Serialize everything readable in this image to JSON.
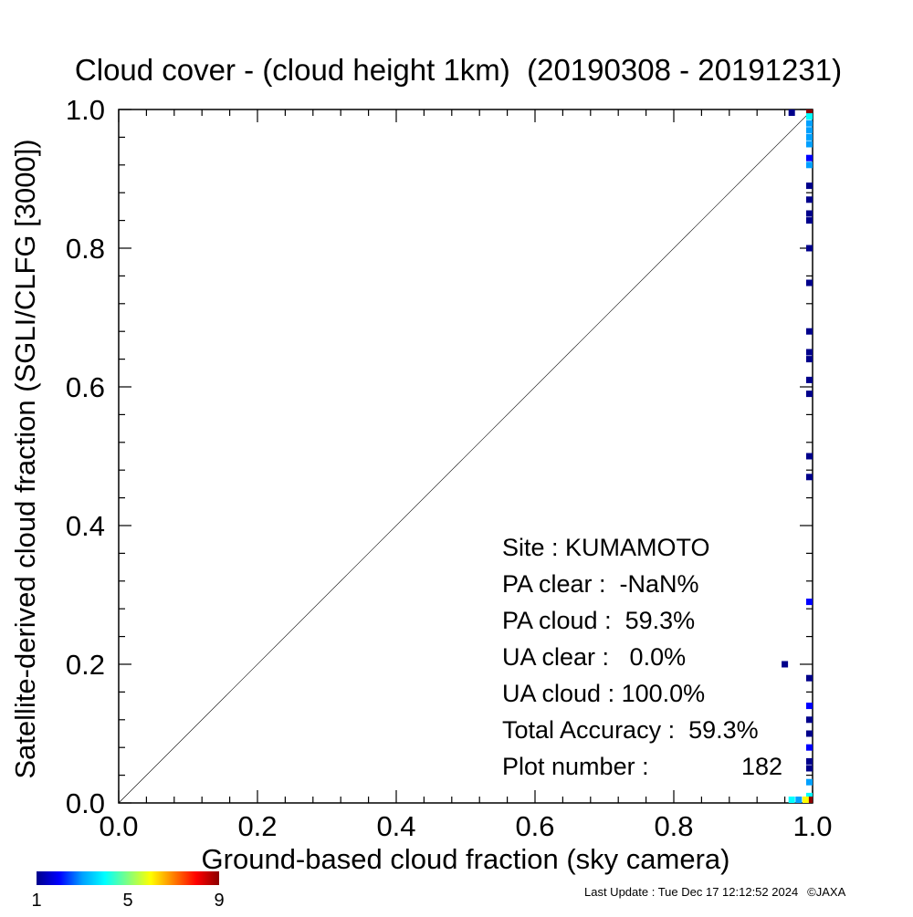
{
  "chart_data": {
    "type": "heatmap",
    "title": "Cloud cover - (cloud height 1km)  (20190308 - 20191231)",
    "xlabel": "Ground-based cloud fraction (sky camera)",
    "ylabel": "Satellite-derived cloud fraction (SGLI/CLFG [3000])",
    "xlim": [
      0,
      1
    ],
    "ylim": [
      0,
      1
    ],
    "x_ticks": [
      "0.0",
      "0.2",
      "0.4",
      "0.6",
      "0.8",
      "1.0"
    ],
    "y_ticks": [
      "0.0",
      "0.2",
      "0.4",
      "0.6",
      "0.8",
      "1.0"
    ],
    "reference_line": "1:1 diagonal",
    "colorbar": {
      "min": 1,
      "max": 9,
      "tick_labels": [
        "1",
        "5",
        "9"
      ],
      "colors": [
        "#00008b",
        "#0000ff",
        "#00a0ff",
        "#00ffff",
        "#80ff80",
        "#ffff00",
        "#ff8000",
        "#ff0000",
        "#8b0000"
      ]
    },
    "points": [
      {
        "x": 1.0,
        "y": 1.0,
        "count": 9
      },
      {
        "x": 1.0,
        "y": 0.99,
        "count": 4
      },
      {
        "x": 1.0,
        "y": 0.98,
        "count": 3
      },
      {
        "x": 1.0,
        "y": 0.97,
        "count": 3
      },
      {
        "x": 1.0,
        "y": 0.96,
        "count": 3
      },
      {
        "x": 1.0,
        "y": 0.95,
        "count": 3
      },
      {
        "x": 1.0,
        "y": 0.93,
        "count": 2
      },
      {
        "x": 1.0,
        "y": 0.92,
        "count": 3
      },
      {
        "x": 1.0,
        "y": 0.89,
        "count": 1
      },
      {
        "x": 1.0,
        "y": 0.87,
        "count": 1
      },
      {
        "x": 1.0,
        "y": 0.85,
        "count": 1
      },
      {
        "x": 1.0,
        "y": 0.84,
        "count": 1
      },
      {
        "x": 1.0,
        "y": 0.8,
        "count": 1
      },
      {
        "x": 1.0,
        "y": 0.75,
        "count": 1
      },
      {
        "x": 1.0,
        "y": 0.68,
        "count": 1
      },
      {
        "x": 1.0,
        "y": 0.65,
        "count": 1
      },
      {
        "x": 1.0,
        "y": 0.64,
        "count": 1
      },
      {
        "x": 1.0,
        "y": 0.61,
        "count": 1
      },
      {
        "x": 1.0,
        "y": 0.59,
        "count": 1
      },
      {
        "x": 1.0,
        "y": 0.5,
        "count": 1
      },
      {
        "x": 1.0,
        "y": 0.47,
        "count": 1
      },
      {
        "x": 1.0,
        "y": 0.29,
        "count": 2
      },
      {
        "x": 1.0,
        "y": 0.18,
        "count": 1
      },
      {
        "x": 1.0,
        "y": 0.14,
        "count": 2
      },
      {
        "x": 1.0,
        "y": 0.12,
        "count": 1
      },
      {
        "x": 1.0,
        "y": 0.1,
        "count": 1
      },
      {
        "x": 1.0,
        "y": 0.08,
        "count": 2
      },
      {
        "x": 1.0,
        "y": 0.06,
        "count": 1
      },
      {
        "x": 1.0,
        "y": 0.05,
        "count": 1
      },
      {
        "x": 1.0,
        "y": 0.03,
        "count": 3
      },
      {
        "x": 1.0,
        "y": 0.01,
        "count": 4
      },
      {
        "x": 1.0,
        "y": 0.0,
        "count": 9
      },
      {
        "x": 0.99,
        "y": 0.0,
        "count": 6
      },
      {
        "x": 0.98,
        "y": 0.0,
        "count": 3
      },
      {
        "x": 0.97,
        "y": 0.0,
        "count": 4
      },
      {
        "x": 0.97,
        "y": 1.0,
        "count": 1
      },
      {
        "x": 0.96,
        "y": 0.2,
        "count": 1
      }
    ]
  },
  "stats": {
    "site": "Site : KUMAMOTO",
    "pa_clear": "PA clear :  -NaN%",
    "pa_cloud": "PA cloud :  59.3%",
    "ua_clear": "UA clear :   0.0%",
    "ua_cloud": "UA cloud : 100.0%",
    "total_accuracy": "Total Accuracy :  59.3%",
    "plot_number_label": "Plot number :",
    "plot_number_value": "182"
  },
  "footer": {
    "last_update": "Last Update : Tue Dec 17 12:12:52 2024",
    "copyright": "©JAXA"
  }
}
